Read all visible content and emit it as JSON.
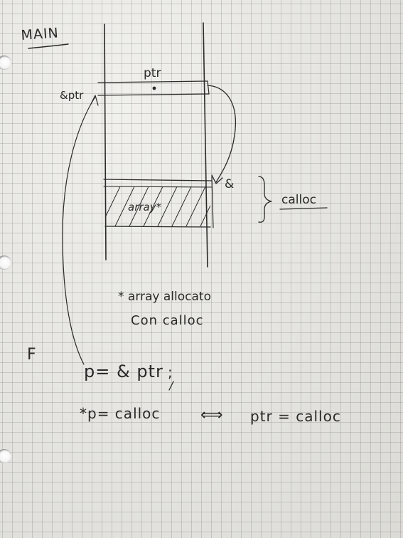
{
  "labels": {
    "main_title": "MAIN",
    "ptr_label": "ptr",
    "addr_ptr_label": "&ptr",
    "ampersand_label": "&",
    "calloc_label": "calloc",
    "array_label": "array*",
    "note_line1": "* array allocato",
    "note_line2": "Con calloc",
    "f_label": "F",
    "assign_line": "p= & ptr",
    "semicolon": ";",
    "deref_line": "*p= calloc",
    "equivalence_symbol": "⟺",
    "ptr_calloc_line": "ptr = calloc"
  },
  "colors": {
    "ink": "#2a2a2a",
    "paper": "#e9e8e3",
    "grid": "#9a9a9a"
  }
}
